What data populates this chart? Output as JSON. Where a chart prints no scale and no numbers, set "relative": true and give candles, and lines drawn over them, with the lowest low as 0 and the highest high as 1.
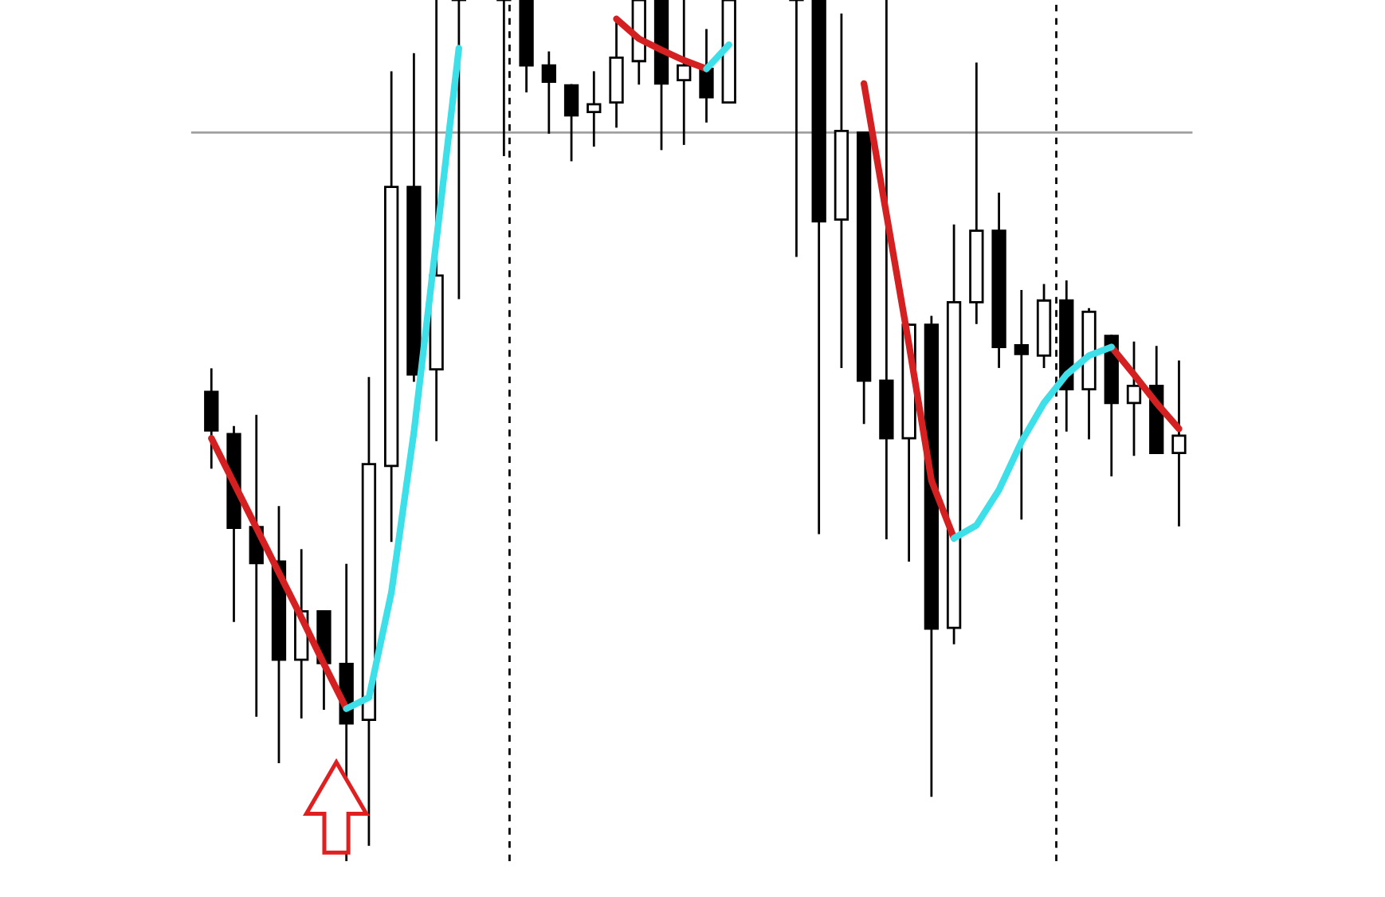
{
  "chart_data": {
    "type": "candlestick",
    "relative": true,
    "tick_labels": false,
    "categories": [
      null,
      null,
      null,
      null,
      null,
      null,
      null,
      null,
      null,
      null,
      null,
      null,
      null,
      null,
      null,
      null,
      null,
      null,
      null,
      null,
      null,
      null,
      null,
      null,
      null,
      null,
      null,
      null,
      null,
      null,
      null,
      null,
      null,
      null,
      null,
      null,
      null,
      null,
      null,
      null,
      null,
      null,
      null,
      null
    ],
    "ohlc": [
      [
        0.545,
        0.571,
        0.457,
        0.5
      ],
      [
        0.496,
        0.504,
        0.279,
        0.387
      ],
      [
        0.388,
        0.517,
        0.169,
        0.346
      ],
      [
        0.348,
        0.411,
        0.115,
        0.234
      ],
      [
        0.234,
        0.361,
        0.167,
        0.29
      ],
      [
        0.29,
        0.29,
        0.177,
        0.23
      ],
      [
        0.229,
        0.344,
        0,
        0.16
      ],
      [
        0.164,
        0.561,
        0.019,
        0.461
      ],
      [
        0.459,
        0.916,
        0.372,
        0.783
      ],
      [
        0.783,
        0.937,
        0.558,
        0.565
      ],
      [
        0.571,
        1,
        0.489,
        0.68
      ],
      [
        1,
        1,
        0.654,
        1
      ],
      null,
      [
        1,
        1,
        0.82,
        1
      ],
      [
        1,
        1,
        0.894,
        0.924
      ],
      [
        0.924,
        0.939,
        0.846,
        0.905
      ],
      [
        0.901,
        0.901,
        0.814,
        0.866
      ],
      [
        0.87,
        0.916,
        0.831,
        0.879
      ],
      [
        0.881,
        0.974,
        0.853,
        0.933
      ],
      [
        0.929,
        1,
        0.903,
        1
      ],
      [
        1,
        1,
        0.827,
        0.903
      ],
      [
        0.907,
        1,
        0.833,
        0.924
      ],
      [
        0.92,
        0.965,
        0.859,
        0.887
      ],
      [
        0.881,
        1,
        0.881,
        1
      ],
      null,
      null,
      [
        1,
        1,
        0.703,
        1
      ],
      [
        1,
        1,
        0.381,
        0.743
      ],
      [
        0.745,
        0.983,
        0.574,
        0.848
      ],
      [
        0.846,
        0.846,
        0.509,
        0.558
      ],
      [
        0.558,
        1,
        0.375,
        0.491
      ],
      [
        0.491,
        0.623,
        0.349,
        0.623
      ],
      [
        0.623,
        0.632,
        0.076,
        0.27
      ],
      [
        0.271,
        0.738,
        0.253,
        0.649
      ],
      [
        0.649,
        0.926,
        0.625,
        0.732
      ],
      [
        0.732,
        0.775,
        0.574,
        0.597
      ],
      [
        0.599,
        0.662,
        0.398,
        0.589
      ],
      [
        0.587,
        0.669,
        0.574,
        0.651
      ],
      [
        0.651,
        0.673,
        0.5,
        0.548
      ],
      [
        0.548,
        0.641,
        0.491,
        0.638
      ],
      [
        0.61,
        0.61,
        0.448,
        0.532
      ],
      [
        0.532,
        0.602,
        0.472,
        0.552
      ],
      [
        0.552,
        0.597,
        0.474,
        0.474
      ],
      [
        0.474,
        0.58,
        0.39,
        0.494
      ]
    ],
    "series": [
      {
        "type": "line",
        "color": "#d42020",
        "values": [
          0.491,
          0.439,
          0.387,
          0.335,
          0.283,
          0.229,
          0.177,
          null,
          null,
          null,
          null,
          null,
          null,
          null,
          null,
          null,
          null,
          null,
          0.978,
          0.955,
          0.942,
          0.93,
          0.92,
          null,
          null,
          null,
          null,
          null,
          null,
          0.903,
          0.751,
          0.6,
          0.442,
          0.375,
          null,
          null,
          null,
          null,
          null,
          null,
          0.597,
          0.565,
          0.532,
          0.502
        ]
      },
      {
        "type": "line",
        "color": "#3de0e8",
        "values": [
          null,
          null,
          null,
          null,
          null,
          null,
          0.177,
          0.19,
          0.312,
          0.498,
          0.721,
          0.944,
          null,
          null,
          null,
          null,
          null,
          null,
          null,
          null,
          null,
          null,
          0.92,
          0.948,
          null,
          null,
          null,
          null,
          null,
          null,
          null,
          null,
          null,
          0.375,
          0.39,
          0.431,
          0.487,
          0.532,
          0.565,
          0.587,
          0.597,
          null,
          null,
          null
        ]
      }
    ],
    "ref_lines": [
      {
        "axis": "y",
        "value": 0.846,
        "color": "#a0a0a0",
        "line_style": "solid"
      }
    ]
  }
}
